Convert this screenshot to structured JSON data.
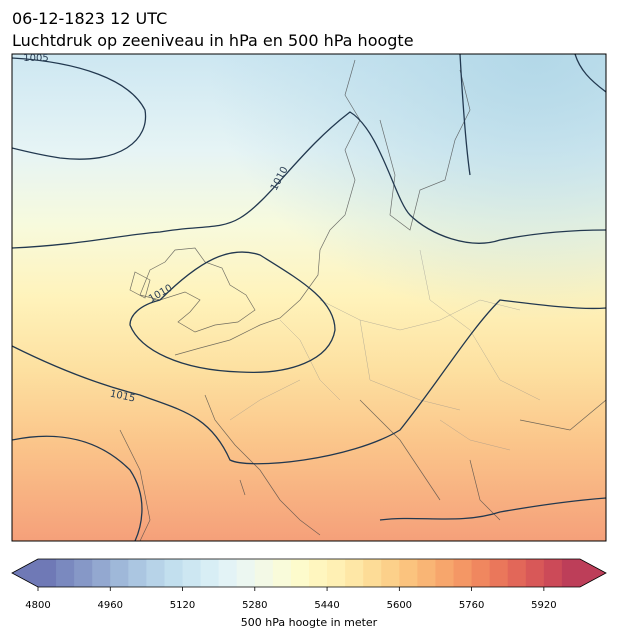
{
  "header": {
    "title_line1": "06-12-1823 12 UTC",
    "title_line2": "Luchtdruk op zeeniveau in hPa en 500 hPa hoogte"
  },
  "map": {
    "contour_labels": [
      "1005",
      "1010",
      "1010",
      "1015"
    ]
  },
  "colorbar": {
    "label": "500 hPa hoogte in meter",
    "range": [
      4800,
      6000
    ],
    "ticks": [
      4800,
      4960,
      5120,
      5280,
      5440,
      5600,
      5760,
      5920
    ],
    "colors": [
      "#6f79b6",
      "#7a89bf",
      "#8698c7",
      "#93a8d0",
      "#9fb8d9",
      "#abc6e1",
      "#b7d3e8",
      "#c2dfee",
      "#cde7f2",
      "#d8eef5",
      "#e3f3f6",
      "#ecf7f1",
      "#f3f9e6",
      "#f9fbda",
      "#fdfbcc",
      "#fff6bf",
      "#fff0b4",
      "#fee7a6",
      "#fddc97",
      "#fcd08a",
      "#fbc37e",
      "#f9b575",
      "#f7a66c",
      "#f49765",
      "#f0875f",
      "#ea775b",
      "#e26759",
      "#d85858",
      "#cc4a58",
      "#bd3e59"
    ]
  }
}
